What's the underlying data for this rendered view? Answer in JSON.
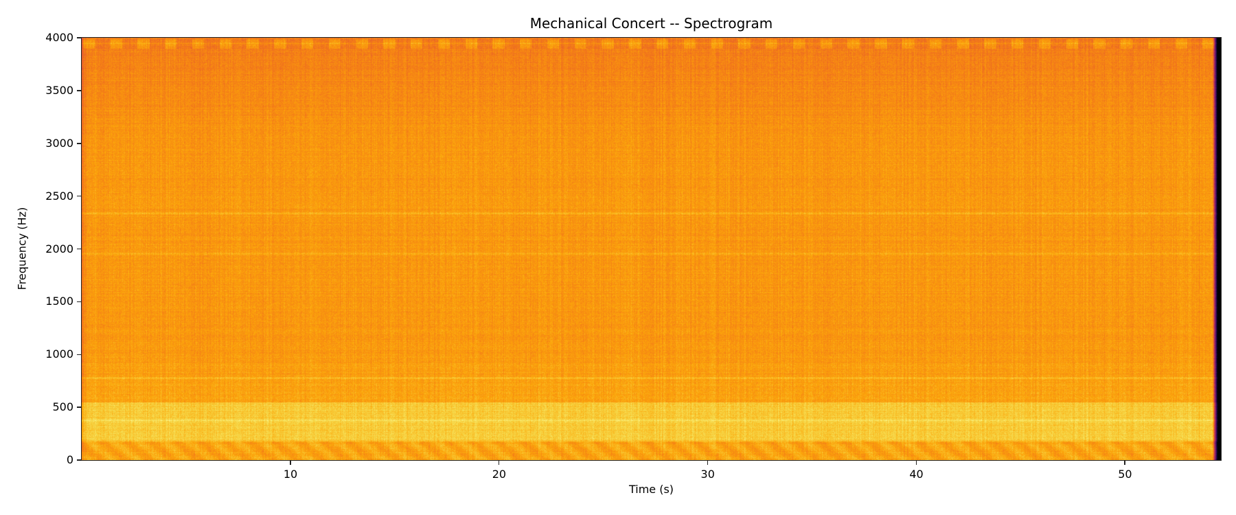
{
  "chart_data": {
    "type": "heatmap",
    "title": "Mechanical Concert -- Spectrogram",
    "xlabel": "Time (s)",
    "ylabel": "Frequency (Hz)",
    "xlim": [
      0,
      54.6
    ],
    "ylim": [
      0,
      4000
    ],
    "xticks": [
      10,
      20,
      30,
      40,
      50
    ],
    "yticks": [
      0,
      500,
      1000,
      1500,
      2000,
      2500,
      3000,
      3500,
      4000
    ],
    "colormap": "inferno",
    "signal_end_s": 54.2,
    "prominent_bands_hz": [
      190,
      380,
      780,
      1960,
      2340,
      3950
    ],
    "grid": false
  }
}
